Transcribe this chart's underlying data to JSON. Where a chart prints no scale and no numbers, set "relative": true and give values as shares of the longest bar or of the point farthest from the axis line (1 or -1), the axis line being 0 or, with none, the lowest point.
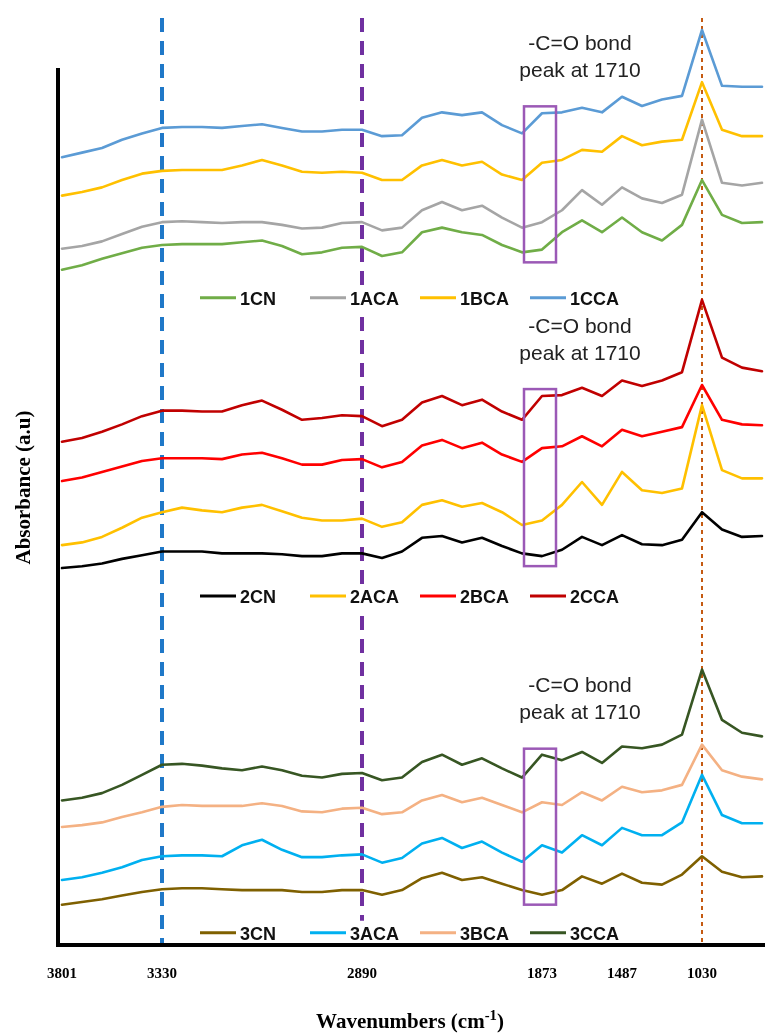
{
  "chart_data": {
    "type": "line",
    "relative": true,
    "xlabel": "Wavenumbers (cm$^{-1}$)",
    "ylabel": "Absorbance (a.u)",
    "tick_labels": "x",
    "legend": "bottom",
    "marker": "none",
    "line_style": "solid",
    "categories": [
      "3801",
      null,
      null,
      null,
      null,
      "3330",
      null,
      null,
      null,
      null,
      null,
      null,
      null,
      null,
      null,
      "2890",
      null,
      null,
      null,
      null,
      null,
      null,
      null,
      null,
      "1873",
      null,
      null,
      null,
      "1487",
      null,
      null,
      null,
      "1030",
      null,
      null,
      null
    ],
    "series": [
      {
        "name": "1CN",
        "color": "#70ad47",
        "values": [
          0.738,
          0.743,
          0.75,
          0.756,
          0.762,
          0.765,
          0.766,
          0.766,
          0.766,
          0.768,
          0.77,
          0.764,
          0.755,
          0.757,
          0.762,
          0.763,
          0.753,
          0.757,
          0.779,
          0.784,
          0.779,
          0.776,
          0.765,
          0.757,
          0.76,
          0.779,
          0.792,
          0.779,
          0.795,
          0.779,
          0.77,
          0.787,
          0.836,
          0.798,
          0.789,
          0.79
        ]
      },
      {
        "name": "1ACA",
        "color": "#a5a5a5",
        "values": [
          0.761,
          0.764,
          0.769,
          0.777,
          0.785,
          0.79,
          0.791,
          0.79,
          0.789,
          0.79,
          0.79,
          0.787,
          0.783,
          0.784,
          0.789,
          0.79,
          0.781,
          0.784,
          0.803,
          0.812,
          0.803,
          0.808,
          0.795,
          0.784,
          0.79,
          0.803,
          0.825,
          0.809,
          0.828,
          0.816,
          0.811,
          0.82,
          0.902,
          0.833,
          0.83,
          0.833
        ]
      },
      {
        "name": "1BCA",
        "color": "#ffc000",
        "values": [
          0.819,
          0.823,
          0.828,
          0.836,
          0.843,
          0.846,
          0.847,
          0.847,
          0.847,
          0.852,
          0.858,
          0.852,
          0.845,
          0.844,
          0.845,
          0.844,
          0.836,
          0.836,
          0.852,
          0.858,
          0.852,
          0.856,
          0.842,
          0.836,
          0.855,
          0.858,
          0.869,
          0.867,
          0.884,
          0.874,
          0.878,
          0.88,
          0.943,
          0.891,
          0.884,
          0.884
        ]
      },
      {
        "name": "1CCA",
        "color": "#5b9bd5",
        "values": [
          0.861,
          0.866,
          0.871,
          0.88,
          0.887,
          0.893,
          0.894,
          0.894,
          0.893,
          0.895,
          0.897,
          0.893,
          0.889,
          0.889,
          0.891,
          0.891,
          0.884,
          0.885,
          0.904,
          0.91,
          0.907,
          0.91,
          0.896,
          0.887,
          0.909,
          0.91,
          0.915,
          0.91,
          0.927,
          0.917,
          0.924,
          0.928,
          1.0,
          0.939,
          0.938,
          0.938
        ]
      },
      {
        "name": "2CN",
        "color": "#000000",
        "values": [
          0.412,
          0.414,
          0.417,
          0.422,
          0.426,
          0.43,
          0.43,
          0.43,
          0.428,
          0.428,
          0.428,
          0.427,
          0.425,
          0.425,
          0.428,
          0.428,
          0.423,
          0.43,
          0.445,
          0.447,
          0.44,
          0.445,
          0.436,
          0.428,
          0.425,
          0.432,
          0.446,
          0.437,
          0.448,
          0.438,
          0.437,
          0.443,
          0.473,
          0.454,
          0.446,
          0.447
        ]
      },
      {
        "name": "2ACA",
        "color": "#ffc000",
        "values": [
          0.437,
          0.44,
          0.446,
          0.456,
          0.467,
          0.473,
          0.478,
          0.475,
          0.473,
          0.478,
          0.481,
          0.474,
          0.467,
          0.464,
          0.464,
          0.466,
          0.457,
          0.462,
          0.481,
          0.486,
          0.479,
          0.483,
          0.473,
          0.459,
          0.464,
          0.481,
          0.506,
          0.481,
          0.517,
          0.497,
          0.494,
          0.499,
          0.59,
          0.519,
          0.51,
          0.51
        ]
      },
      {
        "name": "2BCA",
        "color": "#ff0000",
        "values": [
          0.507,
          0.511,
          0.517,
          0.523,
          0.529,
          0.532,
          0.532,
          0.532,
          0.531,
          0.536,
          0.538,
          0.532,
          0.525,
          0.525,
          0.53,
          0.531,
          0.522,
          0.528,
          0.546,
          0.552,
          0.543,
          0.549,
          0.536,
          0.528,
          0.543,
          0.545,
          0.556,
          0.545,
          0.563,
          0.556,
          0.561,
          0.566,
          0.612,
          0.574,
          0.569,
          0.568
        ]
      },
      {
        "name": "2CCA",
        "color": "#c00000",
        "values": [
          0.55,
          0.554,
          0.561,
          0.569,
          0.578,
          0.584,
          0.584,
          0.583,
          0.583,
          0.59,
          0.595,
          0.585,
          0.574,
          0.576,
          0.579,
          0.578,
          0.567,
          0.574,
          0.593,
          0.6,
          0.59,
          0.596,
          0.583,
          0.574,
          0.6,
          0.601,
          0.609,
          0.6,
          0.617,
          0.611,
          0.617,
          0.626,
          0.705,
          0.642,
          0.631,
          0.627
        ]
      },
      {
        "name": "3CN",
        "color": "#7f6000",
        "values": [
          0.044,
          0.047,
          0.05,
          0.054,
          0.058,
          0.061,
          0.062,
          0.062,
          0.061,
          0.06,
          0.06,
          0.06,
          0.058,
          0.058,
          0.06,
          0.06,
          0.055,
          0.06,
          0.073,
          0.079,
          0.071,
          0.074,
          0.067,
          0.06,
          0.055,
          0.06,
          0.075,
          0.067,
          0.078,
          0.068,
          0.066,
          0.077,
          0.097,
          0.08,
          0.074,
          0.075
        ]
      },
      {
        "name": "3ACA",
        "color": "#00b0f0",
        "values": [
          0.071,
          0.074,
          0.079,
          0.085,
          0.093,
          0.097,
          0.098,
          0.098,
          0.097,
          0.109,
          0.115,
          0.104,
          0.096,
          0.096,
          0.098,
          0.099,
          0.09,
          0.095,
          0.111,
          0.117,
          0.106,
          0.113,
          0.101,
          0.091,
          0.109,
          0.101,
          0.12,
          0.109,
          0.128,
          0.12,
          0.12,
          0.134,
          0.186,
          0.142,
          0.133,
          0.133
        ]
      },
      {
        "name": "3BCA",
        "color": "#f4b183",
        "values": [
          0.129,
          0.131,
          0.134,
          0.14,
          0.145,
          0.151,
          0.153,
          0.152,
          0.152,
          0.152,
          0.155,
          0.152,
          0.146,
          0.145,
          0.149,
          0.15,
          0.143,
          0.145,
          0.158,
          0.164,
          0.156,
          0.161,
          0.153,
          0.145,
          0.156,
          0.153,
          0.167,
          0.158,
          0.173,
          0.167,
          0.169,
          0.175,
          0.219,
          0.191,
          0.184,
          0.181
        ]
      },
      {
        "name": "3CCA",
        "color": "#375623",
        "values": [
          0.158,
          0.161,
          0.166,
          0.175,
          0.186,
          0.197,
          0.198,
          0.196,
          0.193,
          0.191,
          0.195,
          0.191,
          0.185,
          0.183,
          0.187,
          0.188,
          0.18,
          0.183,
          0.2,
          0.208,
          0.197,
          0.204,
          0.193,
          0.183,
          0.208,
          0.202,
          0.211,
          0.199,
          0.217,
          0.215,
          0.219,
          0.23,
          0.301,
          0.246,
          0.232,
          0.228
        ]
      }
    ],
    "ref_lines": [
      {
        "axis": "x",
        "value": "3330",
        "color": "#1f78c8",
        "line_style": "dashed"
      },
      {
        "axis": "x",
        "value": "2890",
        "color": "#7030a0",
        "line_style": "dashed"
      },
      {
        "axis": "x",
        "value": "1030",
        "color": "#c55a11",
        "line_style": "dotted"
      }
    ],
    "annotations": [
      "-C=O bond\npeak at 1710",
      "-C=O bond\npeak at 1710",
      "-C=O bond\npeak at 1710"
    ]
  }
}
